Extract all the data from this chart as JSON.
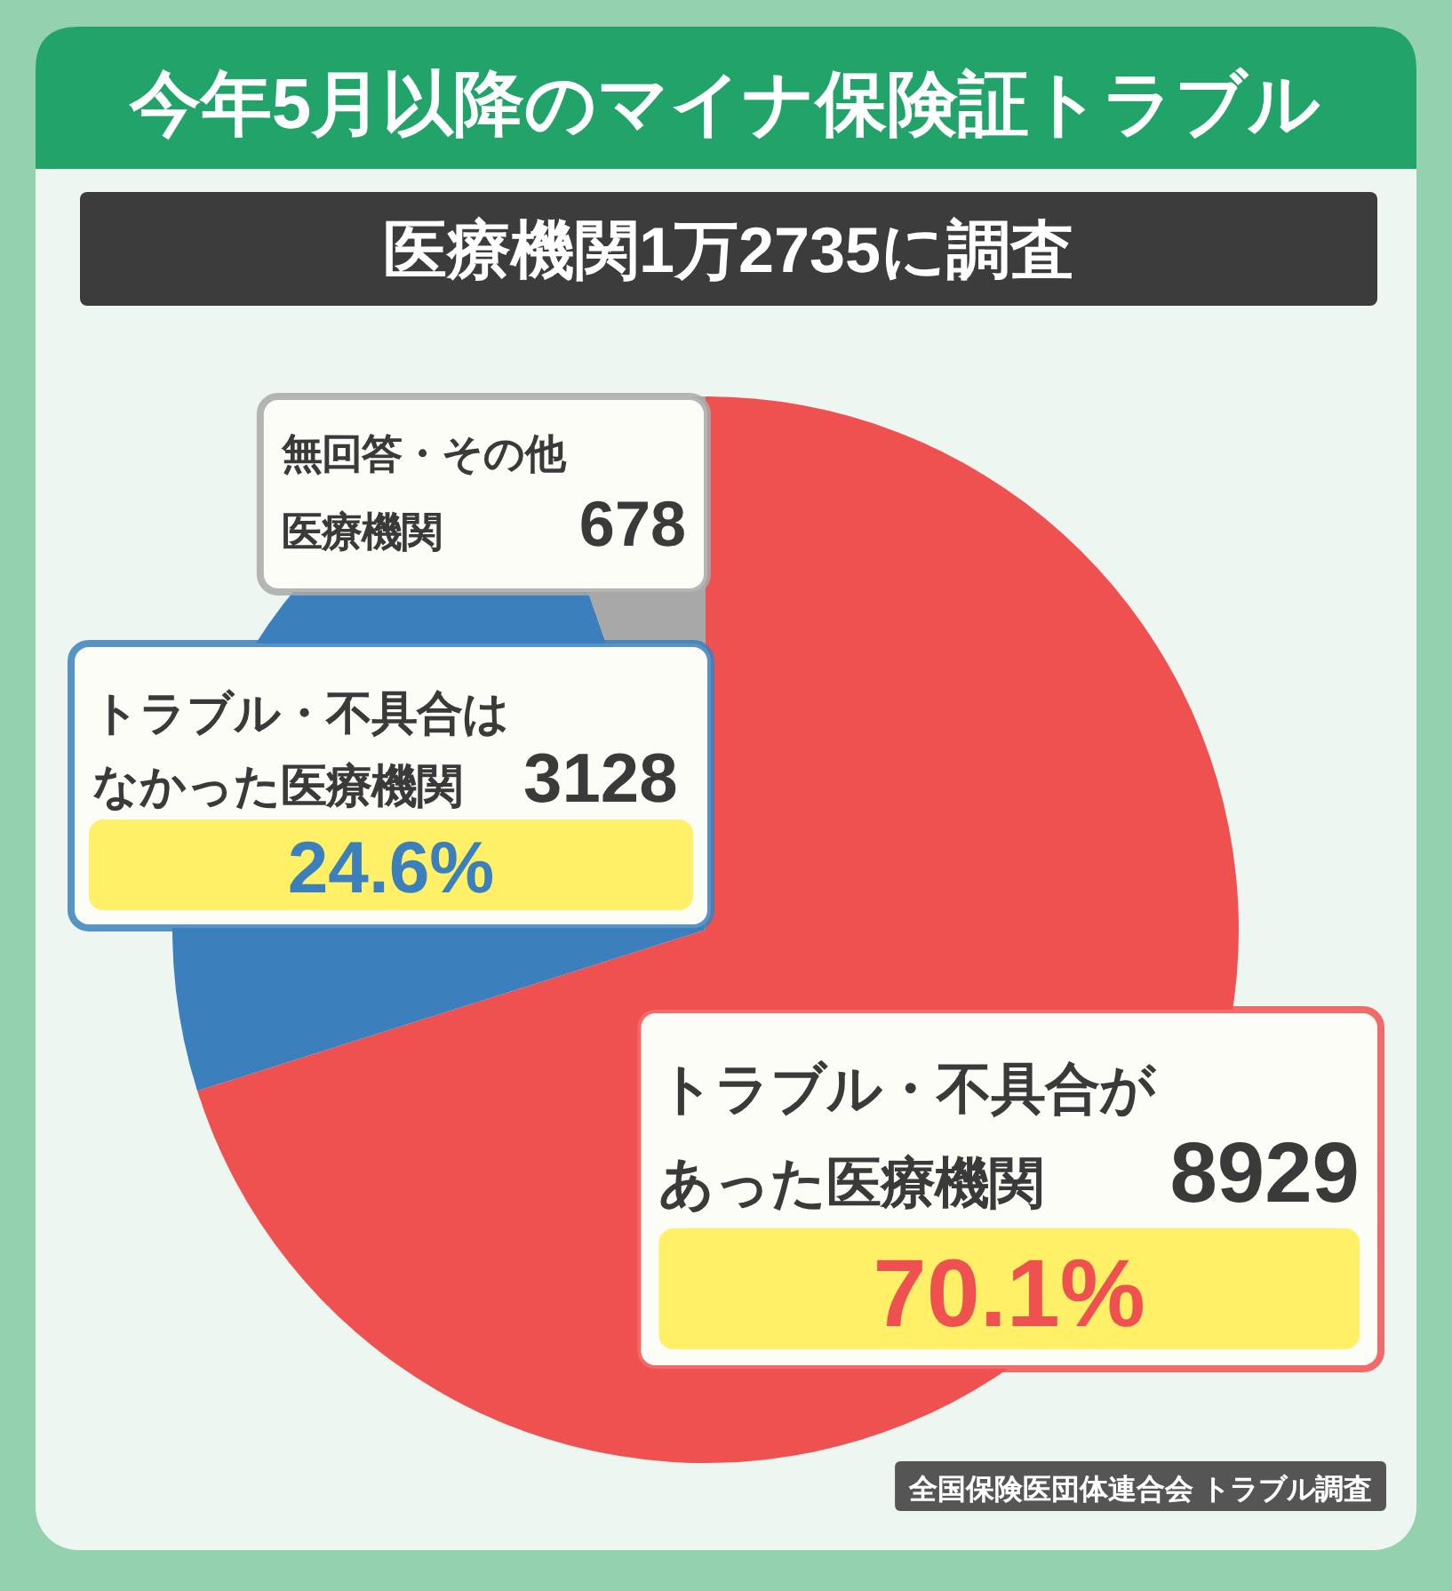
{
  "chart_data": {
    "type": "pie",
    "title": "今年5月以降のマイナ保険証トラブル",
    "subtitle": "医療機関1万2735に調査",
    "categories": [
      "トラブル・不具合があった医療機関",
      "トラブル・不具合はなかった医療機関",
      "無回答・その他医療機関"
    ],
    "values": [
      8929,
      3128,
      678
    ],
    "colors": [
      "#ef5151",
      "#3b80bc",
      "#a8a8a8"
    ],
    "data_labels": true,
    "annotations": [
      {
        "text": "70.1%",
        "x": "トラブル・不具合があった医療機関"
      },
      {
        "text": "24.6%",
        "x": "トラブル・不具合はなかった医療機関"
      },
      "全国保険医団体連合会 トラブル調査"
    ]
  }
}
